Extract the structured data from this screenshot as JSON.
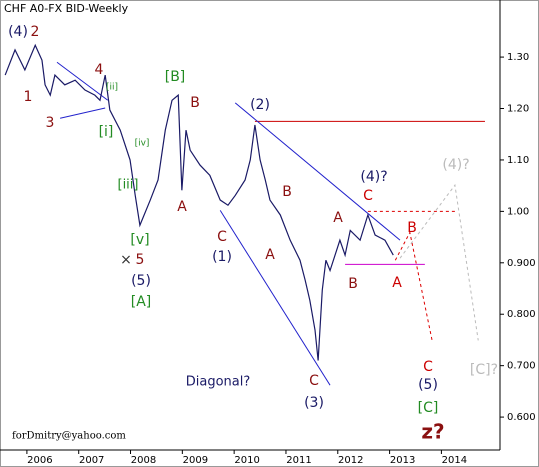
{
  "chart_data": {
    "type": "line",
    "title": "CHF A0-FX BID-Weekly",
    "credit": "forDmitry@yahoo.com",
    "x": [
      2005.33,
      2005.52,
      2005.71,
      2005.91,
      2006.04,
      2006.1,
      2006.2,
      2006.29,
      2006.48,
      2006.68,
      2006.87,
      2007.06,
      2007.16,
      2007.26,
      2007.35,
      2007.55,
      2007.74,
      2007.84,
      2007.93,
      2008.13,
      2008.28,
      2008.42,
      2008.55,
      2008.67,
      2008.74,
      2008.82,
      2008.9,
      2009.09,
      2009.28,
      2009.48,
      2009.63,
      2009.77,
      2009.96,
      2010.06,
      2010.15,
      2010.25,
      2010.35,
      2010.44,
      2010.64,
      2010.83,
      2011.02,
      2011.12,
      2011.21,
      2011.31,
      2011.37,
      2011.45,
      2011.52,
      2011.6,
      2011.79,
      2011.89,
      2011.99,
      2012.18,
      2012.33,
      2012.47,
      2012.66,
      2012.82
    ],
    "series": [
      {
        "color": "#1a1a66",
        "values": [
          1.265,
          1.314,
          1.275,
          1.323,
          1.294,
          1.246,
          1.226,
          1.265,
          1.246,
          1.255,
          1.236,
          1.226,
          1.216,
          1.265,
          1.197,
          1.158,
          1.1,
          1.031,
          0.973,
          1.022,
          1.061,
          1.158,
          1.216,
          1.226,
          1.041,
          1.158,
          1.119,
          1.09,
          1.07,
          1.022,
          1.012,
          1.031,
          1.061,
          1.1,
          1.168,
          1.1,
          1.061,
          1.022,
          0.993,
          0.944,
          0.905,
          0.866,
          0.827,
          0.769,
          0.71,
          0.847,
          0.905,
          0.885,
          0.944,
          0.915,
          0.963,
          0.944,
          0.993,
          0.954,
          0.944,
          0.915
        ]
      }
    ],
    "xlim": [
      2005.23,
      2014.88
    ],
    "ylim": [
      0.536,
      1.411
    ],
    "xticks": [
      2006,
      2007,
      2008,
      2009,
      2010,
      2011,
      2012,
      2013,
      2014
    ],
    "yticks": [
      {
        "value": 1.3,
        "label": "1.30"
      },
      {
        "value": 1.2,
        "label": "1.20"
      },
      {
        "value": 1.1,
        "label": "1.10"
      },
      {
        "value": 1.0,
        "label": "1.00"
      },
      {
        "value": 0.9,
        "label": "0.900"
      },
      {
        "value": 0.8,
        "label": "0.800"
      },
      {
        "value": 0.7,
        "label": "0.700"
      },
      {
        "value": 0.6,
        "label": "0.600"
      }
    ],
    "lines": [
      {
        "color": "#cc0000",
        "dash": false,
        "x": [
          2010.15,
          2014.59
        ],
        "y": [
          1.175,
          1.175
        ]
      },
      {
        "color": "#2222cc",
        "dash": false,
        "x": [
          2009.77,
          2012.95
        ],
        "y": [
          1.211,
          0.944
        ]
      },
      {
        "color": "#2222cc",
        "dash": false,
        "x": [
          2009.48,
          2011.6
        ],
        "y": [
          1.002,
          0.662
        ]
      },
      {
        "color": "#2222cc",
        "dash": false,
        "x": [
          2006.33,
          2007.31
        ],
        "y": [
          1.29,
          1.216
        ]
      },
      {
        "color": "#2222cc",
        "dash": false,
        "x": [
          2006.39,
          2007.26
        ],
        "y": [
          1.181,
          1.201
        ]
      },
      {
        "color": "#cc00cc",
        "dash": false,
        "x": [
          2011.89,
          2013.43
        ],
        "y": [
          0.897,
          0.897
        ]
      },
      {
        "color": "#dd0000",
        "dash": true,
        "x": [
          2012.33,
          2014.01
        ],
        "y": [
          1.0,
          1.0
        ]
      },
      {
        "color": "#dd0000",
        "dash": true,
        "x": [
          2012.86,
          2013.14,
          2013.57
        ],
        "y": [
          0.905,
          0.959,
          0.749
        ]
      },
      {
        "color": "#bbbbbb",
        "dash": true,
        "x": [
          2012.95,
          2014.01,
          2014.46
        ],
        "y": [
          0.909,
          1.051,
          0.749
        ]
      }
    ],
    "annotations": [
      {
        "text": "(4)",
        "color": "#1a1a66"
      },
      {
        "text": "2",
        "color": "#8b1010"
      },
      {
        "text": "4",
        "color": "#8b1010"
      },
      {
        "text": "1",
        "color": "#8b1010"
      },
      {
        "text": "3",
        "color": "#8b1010"
      },
      {
        "text": "[ii]",
        "color": "#228b22"
      },
      {
        "text": "[i]",
        "color": "#228b22"
      },
      {
        "text": "[iv]",
        "color": "#228b22"
      },
      {
        "text": "[iii]",
        "color": "#228b22"
      },
      {
        "text": "[v]",
        "color": "#228b22"
      },
      {
        "text": "×",
        "color": "#333333"
      },
      {
        "text": "5",
        "color": "#8b1010"
      },
      {
        "text": "(5)",
        "color": "#1a1a66"
      },
      {
        "text": "[A]",
        "color": "#228b22"
      },
      {
        "text": "[B]",
        "color": "#228b22"
      },
      {
        "text": "B",
        "color": "#8b1010"
      },
      {
        "text": "A",
        "color": "#8b1010"
      },
      {
        "text": "C",
        "color": "#8b1010"
      },
      {
        "text": "(1)",
        "color": "#1a1a66"
      },
      {
        "text": "(2)",
        "color": "#1a1a66"
      },
      {
        "text": "B",
        "color": "#8b1010"
      },
      {
        "text": "A",
        "color": "#8b1010"
      },
      {
        "text": "B",
        "color": "#8b1010"
      },
      {
        "text": "A",
        "color": "#8b1010"
      },
      {
        "text": "C",
        "color": "#cc0000"
      },
      {
        "text": "(4)?",
        "color": "#1a1a66"
      },
      {
        "text": "B",
        "color": "#cc0000"
      },
      {
        "text": "A",
        "color": "#cc0000"
      },
      {
        "text": "(4)?",
        "color": "#bbbbbb"
      },
      {
        "text": "C",
        "color": "#cc0000"
      },
      {
        "text": "(5)",
        "color": "#1a1a66"
      },
      {
        "text": "[C]",
        "color": "#228b22"
      },
      {
        "text": "z?",
        "color": "#8b1010"
      },
      {
        "text": "[C]?",
        "color": "#bbbbbb"
      },
      {
        "text": "C",
        "color": "#8b1010"
      },
      {
        "text": "(3)",
        "color": "#1a1a66"
      },
      {
        "text": "Diagonal?",
        "color": "#1a1a66"
      }
    ]
  }
}
